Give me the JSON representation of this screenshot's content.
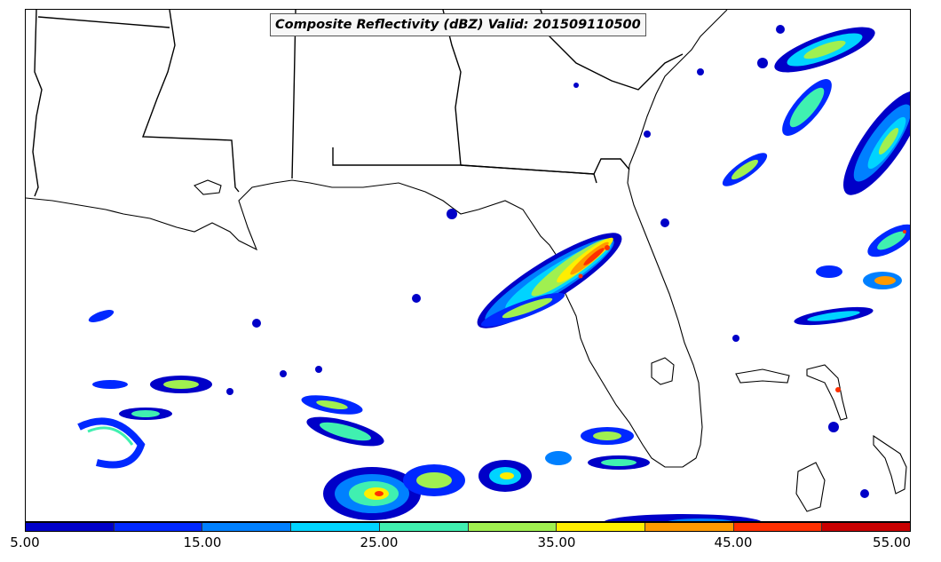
{
  "map": {
    "title": "Composite Reflectivity (dBZ) Valid: 201509110500",
    "regions": [
      "Louisiana",
      "Mississippi",
      "Alabama",
      "Georgia",
      "Florida",
      "Gulf of Mexico",
      "Cuba",
      "Atlantic Ocean"
    ],
    "borders_color": "#000000",
    "water_color": "#ffffff"
  },
  "colorbar": {
    "colors": [
      "#0000c8",
      "#0028ff",
      "#0080ff",
      "#00d4ff",
      "#40f0b0",
      "#a0f050",
      "#ffee00",
      "#ff9a00",
      "#ff3000",
      "#c80000"
    ],
    "tick_labels": [
      "5.00",
      "15.00",
      "25.00",
      "35.00",
      "45.00",
      "55.00"
    ],
    "min": 5,
    "max": 55,
    "unit": "dBZ"
  },
  "echo_colors": {
    "light": "#0000c8",
    "low": "#00d4ff",
    "mid": "#a0f050",
    "high": "#ffee00",
    "heavy": "#ff3000"
  }
}
